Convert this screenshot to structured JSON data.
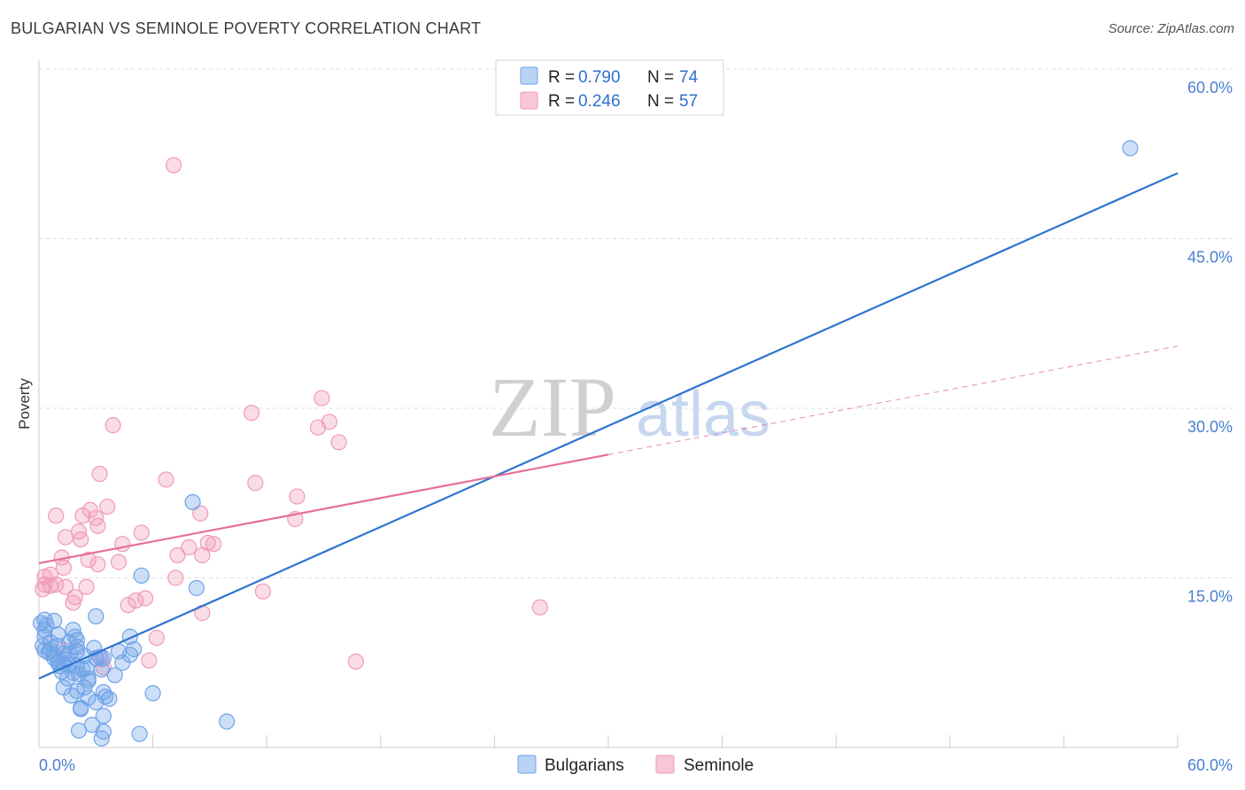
{
  "header": {
    "title": "BULGARIAN VS SEMINOLE POVERTY CORRELATION CHART",
    "source": "Source: ZipAtlas.com"
  },
  "watermark": {
    "zip": "ZIP",
    "atlas": "atlas"
  },
  "colors": {
    "blue": "#6fa3e8",
    "blue_line": "#2f74d0",
    "pink": "#f09ab8",
    "pink_line": "#e56f99",
    "grid": "#dddddd",
    "tick": "#4a7fd0"
  },
  "chart_data": {
    "type": "scatter",
    "title": "BULGARIAN VS SEMINOLE POVERTY CORRELATION CHART",
    "xlabel": "",
    "ylabel": "Poverty",
    "xlim": [
      0,
      60
    ],
    "ylim": [
      0,
      60
    ],
    "x_tick_labels": [
      "0.0%",
      "60.0%"
    ],
    "y_ticks": [
      15,
      30,
      45,
      60
    ],
    "y_tick_labels": [
      "15.0%",
      "30.0%",
      "45.0%",
      "60.0%"
    ],
    "legend": [
      {
        "r_label": "R = ",
        "r": "0.790",
        "n_label": "N = ",
        "n": "74"
      },
      {
        "r_label": "R = ",
        "r": "0.246",
        "n_label": "N = ",
        "n": "57"
      }
    ],
    "bottom_legend": [
      "Bulgarians",
      "Seminole"
    ],
    "series": [
      {
        "name": "Bulgarians",
        "trend": {
          "x0": 0,
          "y0": 6.1,
          "x1": 60,
          "y1": 50.8
        },
        "points": [
          [
            57.5,
            53.0
          ],
          [
            8.1,
            21.7
          ],
          [
            5.4,
            15.2
          ],
          [
            8.3,
            14.1
          ],
          [
            3.0,
            11.6
          ],
          [
            0.3,
            11.3
          ],
          [
            0.8,
            11.2
          ],
          [
            0.3,
            10.4
          ],
          [
            1.8,
            10.4
          ],
          [
            1.0,
            10.0
          ],
          [
            0.3,
            9.8
          ],
          [
            4.8,
            9.8
          ],
          [
            2.0,
            9.5
          ],
          [
            0.6,
            9.3
          ],
          [
            2.0,
            8.9
          ],
          [
            1.0,
            9.0
          ],
          [
            0.3,
            8.6
          ],
          [
            0.6,
            8.6
          ],
          [
            1.3,
            8.3
          ],
          [
            1.6,
            8.3
          ],
          [
            2.4,
            8.1
          ],
          [
            4.2,
            8.5
          ],
          [
            5.0,
            8.7
          ],
          [
            4.8,
            8.2
          ],
          [
            3.4,
            7.9
          ],
          [
            0.8,
            7.9
          ],
          [
            1.0,
            7.6
          ],
          [
            1.3,
            7.4
          ],
          [
            1.6,
            7.3
          ],
          [
            2.0,
            7.2
          ],
          [
            2.3,
            6.9
          ],
          [
            1.2,
            6.7
          ],
          [
            3.3,
            6.9
          ],
          [
            2.1,
            6.5
          ],
          [
            4.0,
            6.4
          ],
          [
            1.5,
            6.1
          ],
          [
            2.6,
            6.1
          ],
          [
            1.3,
            5.3
          ],
          [
            2.4,
            5.3
          ],
          [
            2.0,
            5.0
          ],
          [
            3.4,
            4.9
          ],
          [
            1.7,
            4.6
          ],
          [
            2.6,
            4.4
          ],
          [
            3.0,
            4.0
          ],
          [
            2.2,
            3.4
          ],
          [
            6.0,
            4.8
          ],
          [
            3.4,
            2.8
          ],
          [
            2.8,
            2.0
          ],
          [
            3.4,
            1.4
          ],
          [
            5.3,
            1.2
          ],
          [
            2.1,
            1.5
          ],
          [
            3.3,
            0.8
          ],
          [
            1.0,
            7.5
          ],
          [
            0.5,
            8.4
          ],
          [
            0.2,
            9.0
          ],
          [
            0.4,
            10.8
          ],
          [
            0.1,
            11.0
          ],
          [
            1.6,
            9.3
          ],
          [
            2.0,
            8.5
          ],
          [
            3.0,
            7.9
          ],
          [
            2.5,
            7.0
          ],
          [
            1.8,
            6.6
          ],
          [
            1.5,
            7.8
          ],
          [
            2.9,
            8.8
          ],
          [
            3.2,
            8.0
          ],
          [
            4.4,
            7.5
          ],
          [
            1.9,
            9.8
          ],
          [
            2.6,
            5.9
          ],
          [
            1.1,
            7.2
          ],
          [
            0.8,
            8.2
          ],
          [
            2.2,
            3.5
          ],
          [
            3.7,
            4.3
          ],
          [
            9.9,
            2.3
          ],
          [
            3.5,
            4.5
          ]
        ]
      },
      {
        "name": "Seminole",
        "trend": {
          "x0": 0,
          "y0": 16.3,
          "x1": 30,
          "y1": 25.9,
          "dash_x1": 60,
          "dash_y1": 35.5
        },
        "points": [
          [
            7.1,
            51.5
          ],
          [
            14.9,
            30.9
          ],
          [
            15.3,
            28.8
          ],
          [
            14.7,
            28.3
          ],
          [
            11.2,
            29.6
          ],
          [
            3.9,
            28.5
          ],
          [
            15.8,
            27.0
          ],
          [
            3.2,
            24.2
          ],
          [
            6.7,
            23.7
          ],
          [
            11.4,
            23.4
          ],
          [
            13.6,
            22.2
          ],
          [
            3.6,
            21.3
          ],
          [
            2.7,
            21.0
          ],
          [
            0.9,
            20.5
          ],
          [
            2.3,
            20.5
          ],
          [
            8.5,
            20.7
          ],
          [
            13.5,
            20.2
          ],
          [
            3.0,
            20.3
          ],
          [
            3.1,
            19.6
          ],
          [
            2.1,
            19.1
          ],
          [
            5.4,
            19.0
          ],
          [
            1.4,
            18.6
          ],
          [
            2.2,
            18.4
          ],
          [
            4.4,
            18.0
          ],
          [
            9.2,
            18.0
          ],
          [
            8.9,
            18.1
          ],
          [
            7.9,
            17.7
          ],
          [
            7.3,
            17.0
          ],
          [
            8.6,
            17.0
          ],
          [
            1.2,
            16.8
          ],
          [
            2.6,
            16.6
          ],
          [
            3.1,
            16.2
          ],
          [
            4.2,
            16.4
          ],
          [
            1.3,
            15.9
          ],
          [
            0.6,
            15.3
          ],
          [
            0.3,
            15.1
          ],
          [
            0.9,
            14.4
          ],
          [
            7.2,
            15.0
          ],
          [
            0.3,
            14.4
          ],
          [
            0.6,
            14.3
          ],
          [
            0.2,
            14.0
          ],
          [
            1.4,
            14.2
          ],
          [
            2.5,
            14.2
          ],
          [
            11.8,
            13.8
          ],
          [
            1.9,
            13.3
          ],
          [
            5.6,
            13.2
          ],
          [
            5.1,
            13.0
          ],
          [
            4.7,
            12.6
          ],
          [
            1.8,
            12.8
          ],
          [
            8.6,
            11.9
          ],
          [
            26.4,
            12.4
          ],
          [
            6.2,
            9.7
          ],
          [
            1.3,
            8.6
          ],
          [
            3.3,
            7.8
          ],
          [
            5.8,
            7.7
          ],
          [
            16.7,
            7.6
          ],
          [
            3.4,
            7.1
          ]
        ]
      }
    ]
  }
}
